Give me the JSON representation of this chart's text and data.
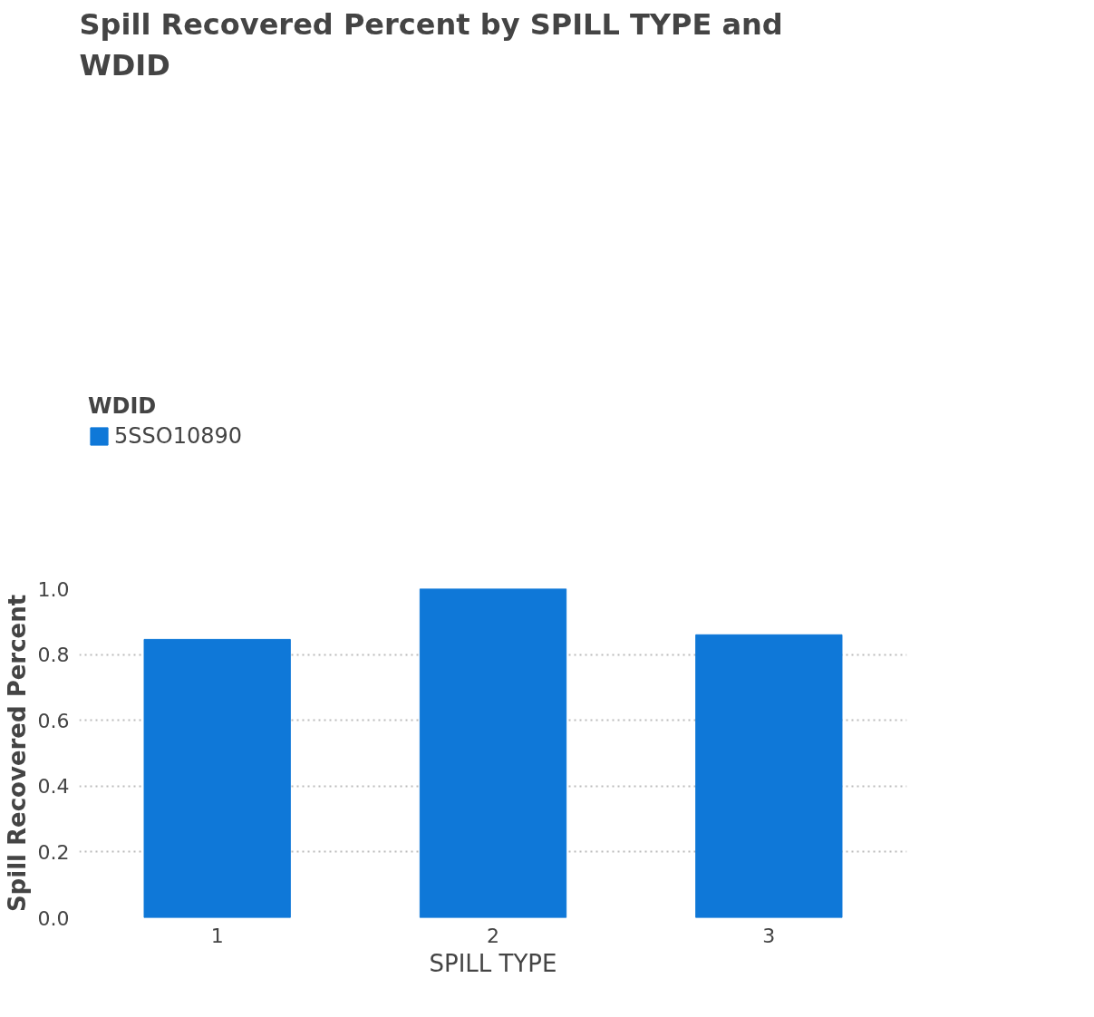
{
  "chart_data": {
    "type": "bar",
    "title": "Spill Recovered Percent by SPILL TYPE and WDID",
    "xlabel": "SPILL TYPE",
    "ylabel": "Spill Recovered Percent",
    "legend_title": "WDID",
    "legend": "top left",
    "categories": [
      "1",
      "2",
      "3"
    ],
    "series": [
      {
        "name": "5SSO10890",
        "color": "#0f78d8",
        "values": [
          0.846,
          1.0,
          0.86
        ]
      }
    ],
    "ylim": [
      0,
      1.0
    ],
    "yticks": [
      {
        "value": 0,
        "label": "0.0"
      },
      {
        "value": 0.2,
        "label": "0.2"
      },
      {
        "value": 0.4,
        "label": "0.4"
      },
      {
        "value": 0.6,
        "label": "0.6"
      },
      {
        "value": 0.8,
        "label": "0.8"
      },
      {
        "value": 1.0,
        "label": "1.0"
      }
    ],
    "grid": "y"
  }
}
